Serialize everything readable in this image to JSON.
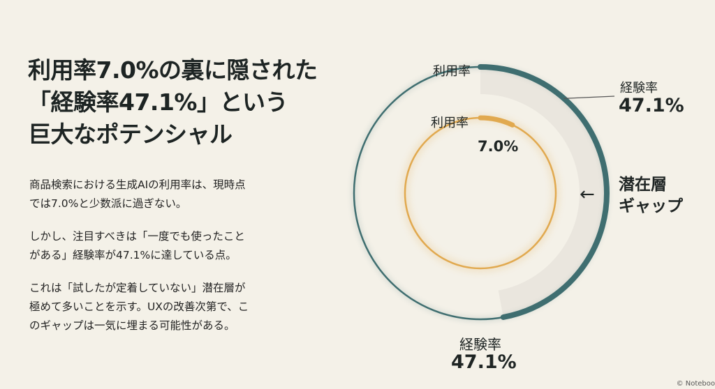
{
  "title_lines": [
    "利用率7.0%の裏に隠された",
    "「経験率47.1%」という",
    "巨大なポテンシャル"
  ],
  "paragraphs": [
    [
      "商品検索における生成AIの利用率は、現時点",
      "では7.0%と少数派に過ぎない。"
    ],
    [
      "しかし、注目すべきは「一度でも使ったこと",
      "がある」経験率が47.1%に達している点。"
    ],
    [
      "これは「試したが定着していない」潜在層が",
      "極めて多いことを示す。UXの改善次第で、こ",
      "のギャップは一気に埋まる可能性がある。"
    ]
  ],
  "chart_labels": {
    "outer_top_label": "利用率",
    "outer_right_name": "経験率",
    "outer_right_value": "47.1%",
    "inner_label": "利用率",
    "inner_value": "7.0%",
    "bottom_name": "経験率",
    "bottom_value": "47.1%",
    "gap_arrow": "←",
    "gap_label_lines": [
      "潜在層",
      "ギャップ"
    ]
  },
  "footer": "© NotebookLM",
  "colors": {
    "outer_ring": "#3f6e70",
    "inner_ring": "#e1a94f",
    "gap_fill": "#e7e4dc"
  },
  "chart_data": {
    "type": "donut",
    "title": "",
    "series": [
      {
        "name": "経験率",
        "value": 47.1,
        "unit": "%"
      },
      {
        "name": "利用率",
        "value": 7.0,
        "unit": "%"
      }
    ],
    "annotation": "潜在層ギャップ"
  }
}
